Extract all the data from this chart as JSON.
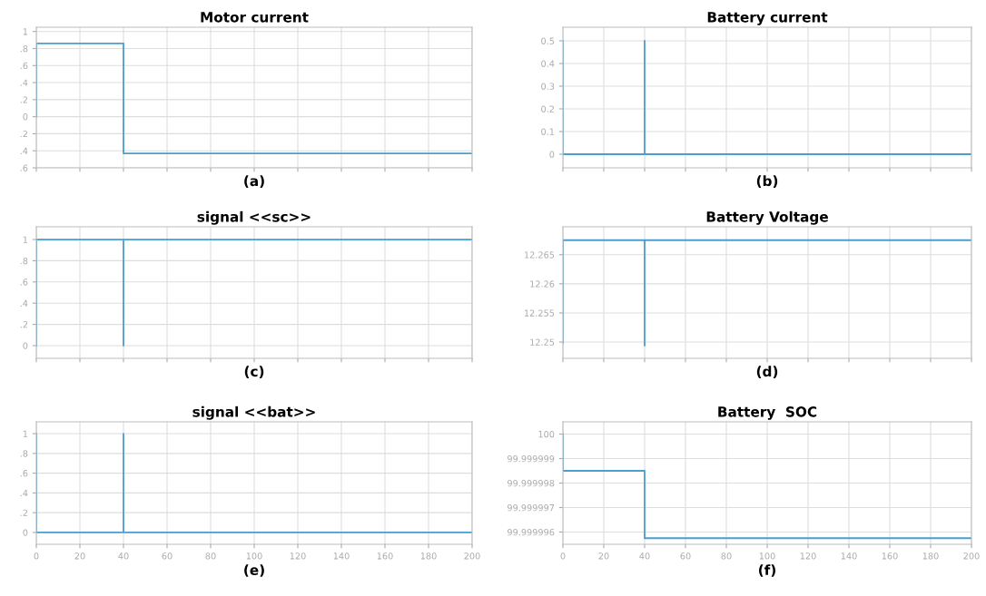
{
  "chart_data": [
    {
      "type": "line",
      "title": "Motor current",
      "annotations": [
        "(a)"
      ],
      "grid": true,
      "tick_labels": "y",
      "xlim": [
        0,
        200
      ],
      "xticks": [
        0,
        20,
        40,
        60,
        80,
        100,
        120,
        140,
        160,
        180,
        200
      ],
      "ylim": [
        -0.6,
        1.05
      ],
      "yticks": [
        {
          "value": -0.6,
          "label": ".6"
        },
        {
          "value": -0.4,
          "label": ".4"
        },
        {
          "value": -0.2,
          "label": ".2"
        },
        0,
        {
          "value": 0.2,
          "label": ".2"
        },
        {
          "value": 0.4,
          "label": ".4"
        },
        {
          "value": 0.6,
          "label": ".6"
        },
        {
          "value": 0.8,
          "label": ".8"
        },
        1
      ],
      "series": [
        {
          "color": "#4a9fd0",
          "x": [
            0,
            0,
            40,
            40,
            200
          ],
          "values": [
            0,
            0.86,
            0.86,
            -0.43,
            -0.43
          ]
        }
      ]
    },
    {
      "type": "line",
      "title": "Battery current",
      "annotations": [
        "(b)"
      ],
      "grid": true,
      "tick_labels": "y",
      "xlim": [
        0,
        200
      ],
      "xticks": [
        0,
        20,
        40,
        60,
        80,
        100,
        120,
        140,
        160,
        180,
        200
      ],
      "ylim": [
        -0.06,
        0.56
      ],
      "yticks": [
        0,
        0.1,
        0.2,
        0.3,
        0.4,
        0.5
      ],
      "series": [
        {
          "color": "#4a9fd0",
          "x": [
            0,
            0,
            0,
            40,
            40,
            40,
            200
          ],
          "values": [
            0.5,
            0,
            0,
            0,
            0.5,
            0,
            0
          ]
        }
      ]
    },
    {
      "type": "line",
      "title": "signal <<sc>>",
      "annotations": [
        "(c)"
      ],
      "grid": true,
      "tick_labels": "y",
      "xlim": [
        0,
        200
      ],
      "xticks": [
        0,
        20,
        40,
        60,
        80,
        100,
        120,
        140,
        160,
        180,
        200
      ],
      "ylim": [
        -0.12,
        1.12
      ],
      "yticks": [
        0,
        {
          "value": 0.2,
          "label": ".2"
        },
        {
          "value": 0.4,
          "label": ".4"
        },
        {
          "value": 0.6,
          "label": ".6"
        },
        {
          "value": 0.8,
          "label": ".8"
        },
        1
      ],
      "series": [
        {
          "color": "#4a9fd0",
          "x": [
            0,
            0,
            40,
            40,
            40,
            200
          ],
          "values": [
            0,
            1,
            1,
            0,
            1,
            1
          ]
        }
      ]
    },
    {
      "type": "line",
      "title": "Battery Voltage",
      "annotations": [
        "(d)"
      ],
      "grid": true,
      "tick_labels": "y",
      "xlim": [
        0,
        200
      ],
      "xticks": [
        0,
        20,
        40,
        60,
        80,
        100,
        120,
        140,
        160,
        180,
        200
      ],
      "ylim": [
        12.2472,
        12.2698
      ],
      "yticks": [
        12.25,
        12.255,
        12.26,
        12.265
      ],
      "series": [
        {
          "color": "#4a9fd0",
          "x": [
            0,
            0,
            40,
            40,
            40,
            200
          ],
          "values": [
            12.2498,
            12.2675,
            12.2675,
            12.2494,
            12.2675,
            12.2675
          ]
        }
      ]
    },
    {
      "type": "line",
      "title": "signal <<bat>>",
      "annotations": [
        "(e)"
      ],
      "grid": true,
      "xlim": [
        0,
        200
      ],
      "xticks": [
        0,
        20,
        40,
        60,
        80,
        100,
        120,
        140,
        160,
        180,
        200
      ],
      "ylim": [
        -0.12,
        1.12
      ],
      "yticks": [
        0,
        {
          "value": 0.2,
          "label": ".2"
        },
        {
          "value": 0.4,
          "label": ".4"
        },
        {
          "value": 0.6,
          "label": ".6"
        },
        {
          "value": 0.8,
          "label": ".8"
        },
        1
      ],
      "series": [
        {
          "color": "#4a9fd0",
          "x": [
            0,
            0,
            40,
            40,
            40,
            200
          ],
          "values": [
            1,
            0,
            0,
            1,
            0,
            0
          ]
        }
      ]
    },
    {
      "type": "line",
      "title": "Battery  SOC",
      "annotations": [
        "(f)"
      ],
      "grid": true,
      "xlim": [
        0,
        200
      ],
      "xticks": [
        0,
        20,
        40,
        60,
        80,
        100,
        120,
        140,
        160,
        180,
        200
      ],
      "ylim": [
        99.9999955,
        100.0000005
      ],
      "yticks": [
        {
          "value": 99.999996,
          "label": "99.999996"
        },
        {
          "value": 99.999997,
          "label": "99.999997"
        },
        {
          "value": 99.999998,
          "label": "99.999998"
        },
        {
          "value": 99.999999,
          "label": "99.999999"
        },
        100
      ],
      "series": [
        {
          "color": "#4a9fd0",
          "x": [
            0,
            0,
            40,
            40,
            200
          ],
          "values": [
            100,
            99.9999985,
            99.9999985,
            99.99999575,
            99.99999575
          ]
        }
      ]
    }
  ]
}
